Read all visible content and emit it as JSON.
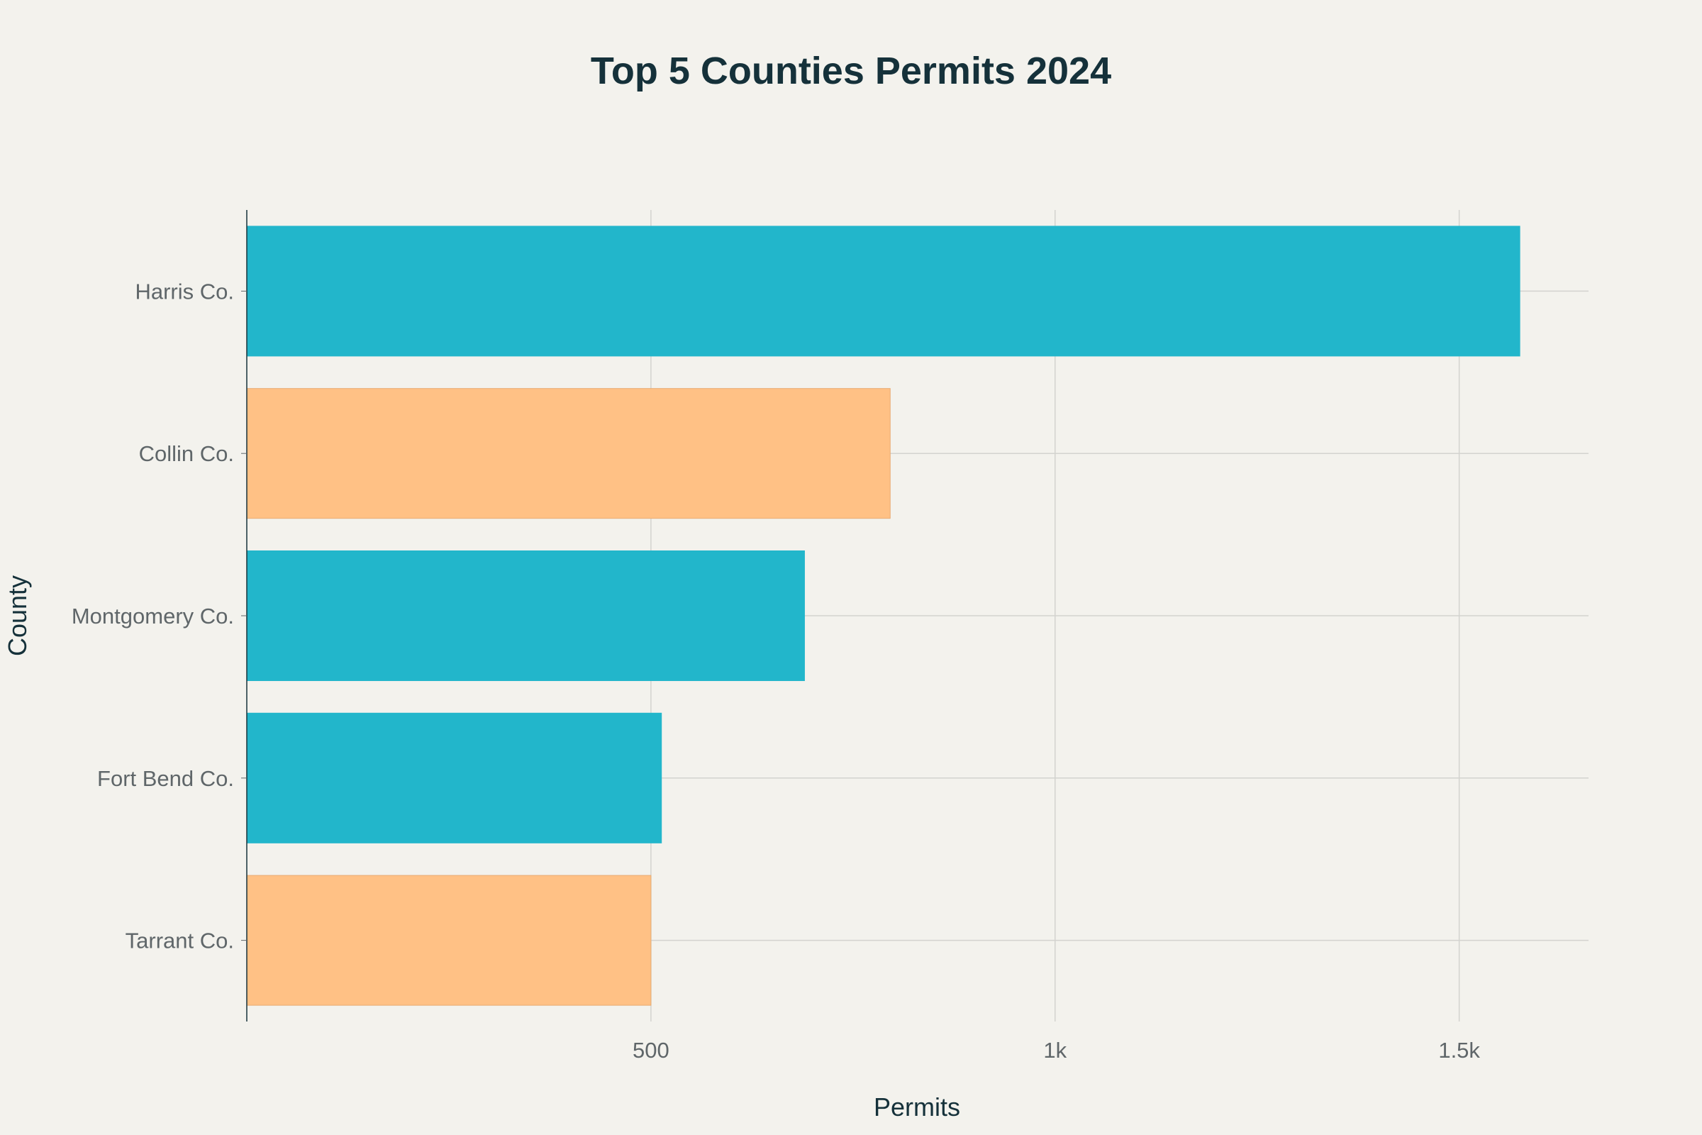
{
  "chart_data": {
    "type": "bar",
    "orientation": "horizontal",
    "title": "Top 5 Counties Permits 2024",
    "xlabel": "Permits",
    "ylabel": "County",
    "categories": [
      "Harris Co.",
      "Collin Co.",
      "Montgomery Co.",
      "Fort Bend Co.",
      "Tarrant Co."
    ],
    "values": [
      1575,
      796,
      690,
      513,
      500
    ],
    "bar_colors": [
      "#22b6cb",
      "#ffc185",
      "#22b6cb",
      "#22b6cb",
      "#ffc185"
    ],
    "xlim": [
      0,
      1660
    ],
    "xticks": [
      500,
      1000,
      1500
    ],
    "xtick_labels": [
      "500",
      "1k",
      "1.5k"
    ],
    "grid": true,
    "legend": false
  },
  "colors": {
    "background": "#f3f2ed",
    "text_dark": "#15313a",
    "tick_text": "#5f6669",
    "grid": "#d3d3cf",
    "teal": "#22b6cb",
    "orange": "#ffc185"
  }
}
